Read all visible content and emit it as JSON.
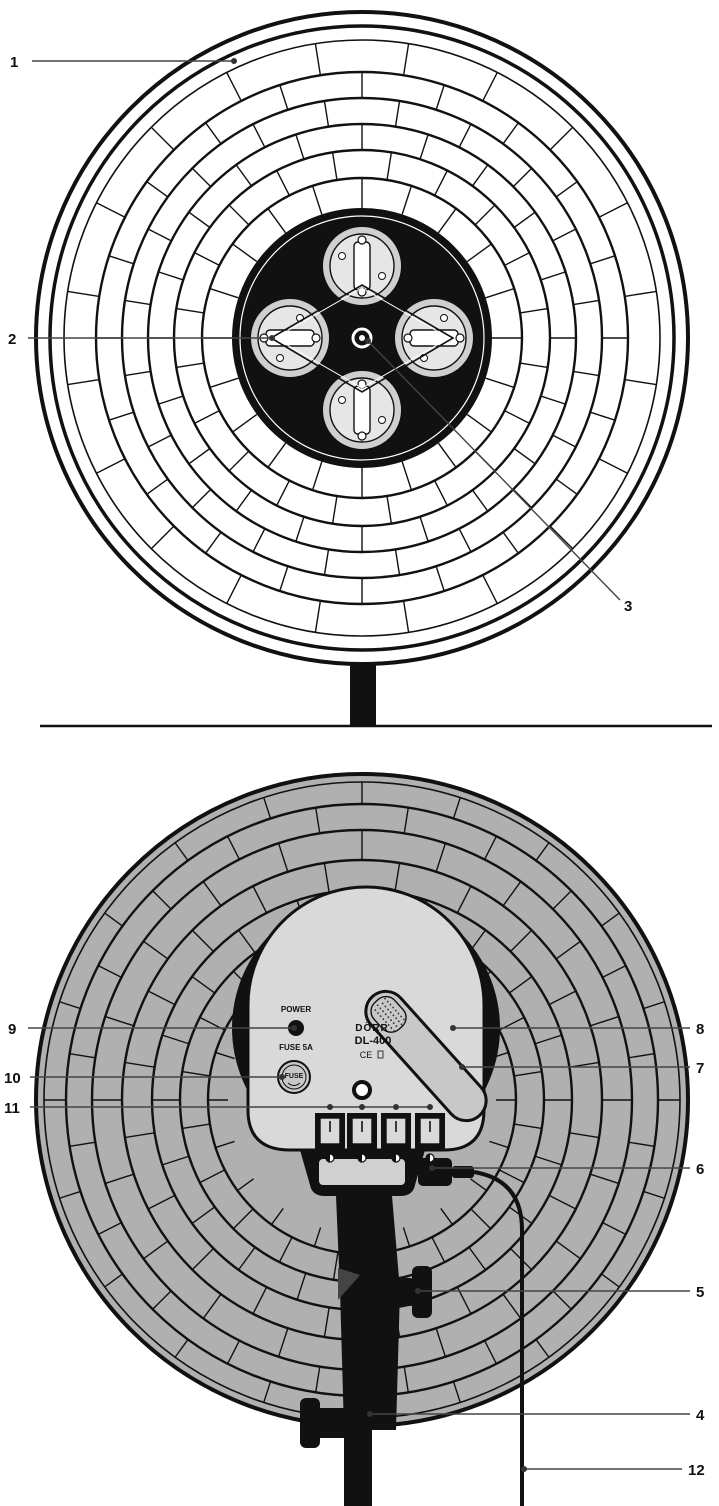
{
  "device": {
    "brand": "DÖRR",
    "model": "DL-400",
    "marks": "CE",
    "power_label": "POWER",
    "fuse_label": "FUSE 5A",
    "fuse_cap_label": "FUSE"
  },
  "callouts": {
    "c1": "1",
    "c2": "2",
    "c3": "3",
    "c4": "4",
    "c5": "5",
    "c6": "6",
    "c7": "7",
    "c8": "8",
    "c9": "9",
    "c10": "10",
    "c11": "11",
    "c12": "12"
  },
  "colors": {
    "reflector_back": "#b0b0b0",
    "ink": "#111111",
    "housing": "#d9d9d9"
  }
}
